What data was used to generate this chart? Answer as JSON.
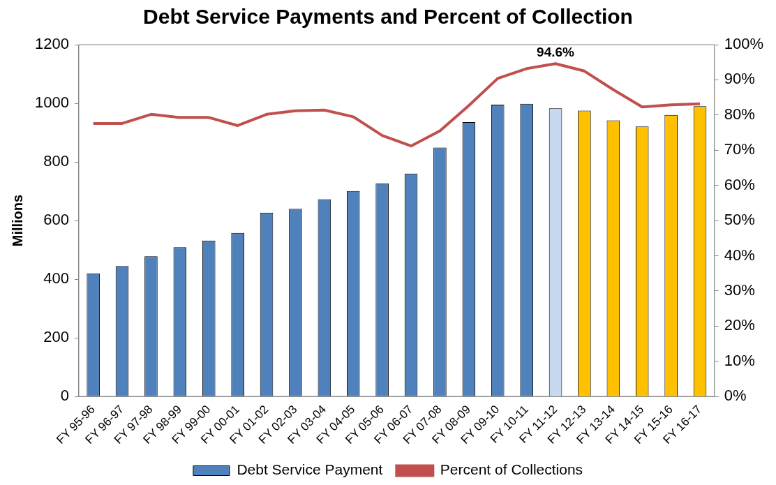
{
  "chart_data": {
    "type": "bar",
    "title": "Debt Service Payments and Percent of Collection",
    "ylabel": "Millions",
    "categories": [
      "FY 95-96",
      "FY 96-97",
      "FY 97-98",
      "FY 98-99",
      "FY 99-00",
      "FY 00-01",
      "FY 01-02",
      "FY 02-03",
      "FY 03-04",
      "FY 04-05",
      "FY 05-06",
      "FY 06-07",
      "FY 07-08",
      "FY 08-09",
      "FY 09-10",
      "FY 10-11",
      "FY 11-12",
      "FY 12-13",
      "FY 13-14",
      "FY 14-15",
      "FY 15-16",
      "FY 16-17"
    ],
    "series": [
      {
        "name": "Debt Service Payment",
        "color": "#4f81bd",
        "colors": [
          "#4f81bd",
          "#4f81bd",
          "#4f81bd",
          "#4f81bd",
          "#4f81bd",
          "#4f81bd",
          "#4f81bd",
          "#4f81bd",
          "#4f81bd",
          "#4f81bd",
          "#4f81bd",
          "#4f81bd",
          "#4f81bd",
          "#4f81bd",
          "#4f81bd",
          "#4f81bd",
          "#c6d9f1",
          "#ffc000",
          "#ffc000",
          "#ffc000",
          "#ffc000",
          "#ffc000"
        ],
        "values": [
          420,
          445,
          478,
          509,
          532,
          558,
          627,
          640,
          673,
          701,
          727,
          760,
          849,
          936,
          995,
          998,
          983,
          975,
          942,
          921,
          960,
          990
        ]
      },
      {
        "name": "Percent of Collections",
        "type": "line",
        "axis": "y2",
        "color": "#c0504d",
        "marker": "none",
        "line_style": "solid",
        "values": [
          77.6,
          77.6,
          80.2,
          79.3,
          79.3,
          77.0,
          80.2,
          81.2,
          81.4,
          79.5,
          74.2,
          71.2,
          75.5,
          82.7,
          90.4,
          93.2,
          94.6,
          92.5,
          87.2,
          82.3,
          82.9,
          83.2
        ]
      }
    ],
    "ylim": [
      0,
      1200
    ],
    "yticks": [
      0,
      200,
      400,
      600,
      800,
      1000,
      1200
    ],
    "y2lim": [
      0,
      100
    ],
    "y2ticks": [
      {
        "value": 0,
        "label": "0%"
      },
      {
        "value": 10,
        "label": "10%"
      },
      {
        "value": 20,
        "label": "20%"
      },
      {
        "value": 30,
        "label": "30%"
      },
      {
        "value": 40,
        "label": "40%"
      },
      {
        "value": 50,
        "label": "50%"
      },
      {
        "value": 60,
        "label": "60%"
      },
      {
        "value": 70,
        "label": "70%"
      },
      {
        "value": 80,
        "label": "80%"
      },
      {
        "value": 90,
        "label": "90%"
      },
      {
        "value": 100,
        "label": "100%"
      }
    ],
    "annotations": [
      "94.6%"
    ],
    "grid": false,
    "legend": "bottom"
  }
}
